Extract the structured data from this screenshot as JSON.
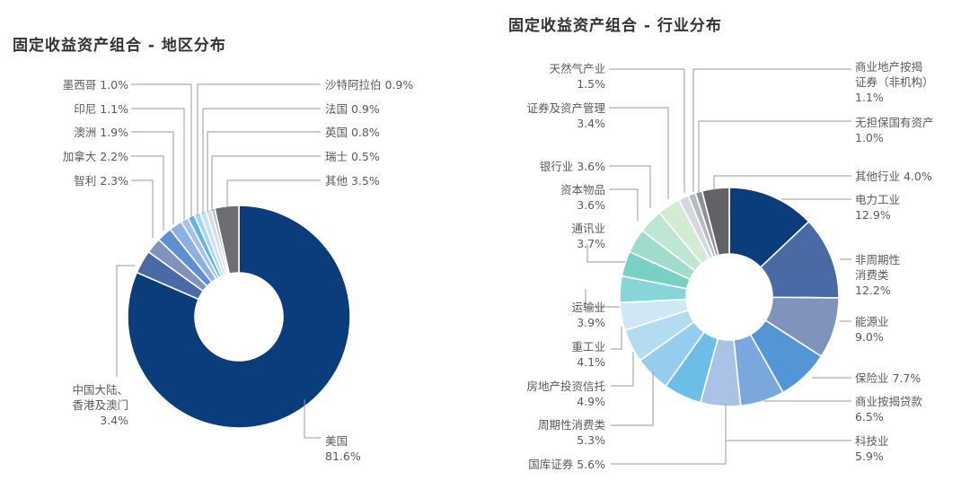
{
  "chart_data": [
    {
      "type": "pie",
      "subtype": "donut",
      "title": "固定收益资产组合 - 地区分布",
      "categories": [
        "美国",
        "中国大陆、香港及澳门",
        "智利",
        "加拿大",
        "澳洲",
        "印尼",
        "墨西哥",
        "沙特阿拉伯",
        "法国",
        "英国",
        "瑞士",
        "其他"
      ],
      "values": [
        81.6,
        3.4,
        2.3,
        2.2,
        1.9,
        1.1,
        1.0,
        0.9,
        0.9,
        0.8,
        0.5,
        3.5
      ],
      "unit": "%",
      "colors": [
        "#0b3c7c",
        "#4a6aa5",
        "#7f93bd",
        "#5d8fd1",
        "#8db0e3",
        "#a9c0e6",
        "#62b4e3",
        "#a6d7ef",
        "#c5e3f0",
        "#d7dde6",
        "#b4b8be",
        "#6d6e71"
      ],
      "labels": [
        {
          "name": "美国",
          "value": "81.6%"
        },
        {
          "name": "中国大陆、香港及澳门",
          "line1": "中国大陆、",
          "line2": "香港及澳门",
          "value": "3.4%"
        },
        {
          "name": "智利",
          "value": "2.3%"
        },
        {
          "name": "加拿大",
          "value": "2.2%"
        },
        {
          "name": "澳洲",
          "value": "1.9%"
        },
        {
          "name": "印尼",
          "value": "1.1%"
        },
        {
          "name": "墨西哥",
          "value": "1.0%"
        },
        {
          "name": "沙特阿拉伯",
          "value": "0.9%"
        },
        {
          "name": "法国",
          "value": "0.9%"
        },
        {
          "name": "英国",
          "value": "0.8%"
        },
        {
          "name": "瑞士",
          "value": "0.5%"
        },
        {
          "name": "其他",
          "value": "3.5%"
        }
      ]
    },
    {
      "type": "pie",
      "subtype": "donut",
      "title": "固定收益资产组合 - 行业分布",
      "categories": [
        "电力工业",
        "非周期性消费类",
        "能源业",
        "保险业",
        "商业按揭贷款",
        "科技业",
        "国库证券",
        "周期性消费类",
        "房地产投资信托",
        "重工业",
        "运输业",
        "通讯业",
        "资本物品",
        "银行业",
        "证券及资产管理",
        "天然气产业",
        "商业地产按揭证券(非机构)",
        "无担保国有资产",
        "其他行业"
      ],
      "values": [
        12.9,
        12.2,
        9.0,
        7.7,
        6.5,
        5.9,
        5.6,
        5.3,
        4.9,
        4.1,
        3.9,
        3.7,
        3.6,
        3.6,
        3.4,
        1.5,
        1.1,
        1.0,
        4.0
      ],
      "unit": "%",
      "colors": [
        "#0b3c7c",
        "#4a6aa5",
        "#7f93bd",
        "#5396d6",
        "#7aa8de",
        "#a8c3e6",
        "#6cbde8",
        "#95cdee",
        "#b4dcf1",
        "#cfe8f6",
        "#86d5d9",
        "#79d0c5",
        "#9fdccb",
        "#bde6d5",
        "#d2ecd3",
        "#d5d8dc",
        "#b8bcc2",
        "#8e9196",
        "#626366"
      ]
    }
  ],
  "left": {
    "title": "固定收益资产组合 - 地区分布",
    "labels": {
      "mexico": "墨西哥 1.0%",
      "indonesia": "印尼 1.1%",
      "australia": "澳洲 1.9%",
      "canada": "加拿大 2.2%",
      "chile": "智利 2.3%",
      "saudi": "沙特阿拉伯 0.9%",
      "france": "法国 0.9%",
      "uk": "英国 0.8%",
      "switzerland": "瑞士 0.5%",
      "other": "其他 3.5%",
      "china_l1": "中国大陆、",
      "china_l2": "香港及澳门",
      "china_v": "3.4%",
      "usa_l1": "美国",
      "usa_v": "81.6%"
    }
  },
  "right": {
    "title": "固定收益资产组合 - 行业分布",
    "labels": {
      "gas_l1": "天然气产业",
      "gas_v": "1.5%",
      "sec_l1": "证券及资产管理",
      "sec_v": "3.4%",
      "bank": "银行业 3.6%",
      "capital_l1": "资本物品",
      "capital_v": "3.6%",
      "telecom_l1": "通讯业",
      "telecom_v": "3.7%",
      "transport_l1": "运输业",
      "transport_v": "3.9%",
      "heavy_l1": "重工业",
      "heavy_v": "4.1%",
      "reit_l1": "房地产投资信托",
      "reit_v": "4.9%",
      "cyclical_l1": "周期性消费类",
      "cyclical_v": "5.3%",
      "treasury": "国库证券 5.6%",
      "cmbs_l1": "商业地产按揭",
      "cmbs_l2": "证券（非机构）",
      "cmbs_v": "1.1%",
      "sovereign_l1": "无担保国有资产",
      "sovereign_v": "1.0%",
      "other": "其他行业 4.0%",
      "power_l1": "电力工业",
      "power_v": "12.9%",
      "noncyc_l1": "非周期性",
      "noncyc_l2": "消费类",
      "noncyc_v": "12.2%",
      "energy_l1": "能源业",
      "energy_v": "9.0%",
      "insurance": "保险业 7.7%",
      "mortgage_l1": "商业按揭贷款",
      "mortgage_v": "6.5%",
      "tech_l1": "科技业",
      "tech_v": "5.9%"
    }
  }
}
